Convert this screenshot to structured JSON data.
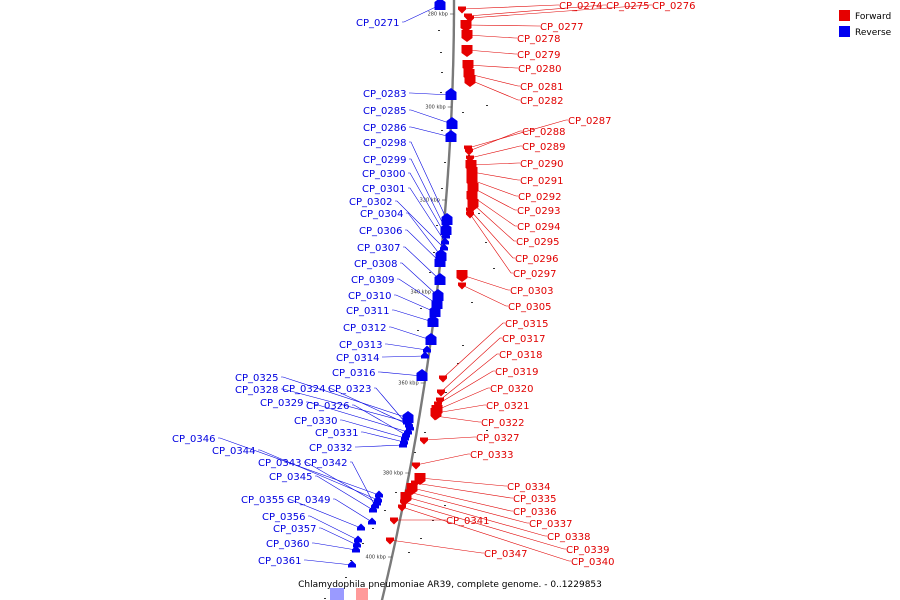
{
  "caption": "Chlamydophila pneumoniae AR39, complete genome. - 0..1229853",
  "legend": {
    "forward": {
      "label": "Forward",
      "color": "#e60000"
    },
    "reverse": {
      "label": "Reverse",
      "color": "#0000f0"
    }
  },
  "ticks": [
    {
      "label": "280 kbp"
    },
    {
      "label": "300 kbp"
    },
    {
      "label": "320 kbp"
    },
    {
      "label": "340 kbp"
    },
    {
      "label": "360 kbp"
    },
    {
      "label": "380 kbp"
    },
    {
      "label": "400 kbp"
    }
  ],
  "forward_genes": [
    "CP_0274",
    "CP_0275",
    "CP_0276",
    "CP_0277",
    "CP_0278",
    "CP_0279",
    "CP_0280",
    "CP_0281",
    "CP_0282",
    "CP_0287",
    "CP_0288",
    "CP_0289",
    "CP_0290",
    "CP_0291",
    "CP_0292",
    "CP_0293",
    "CP_0294",
    "CP_0295",
    "CP_0296",
    "CP_0297",
    "CP_0303",
    "CP_0305",
    "CP_0315",
    "CP_0317",
    "CP_0318",
    "CP_0319",
    "CP_0320",
    "CP_0321",
    "CP_0322",
    "CP_0327",
    "CP_0333",
    "CP_0334",
    "CP_0335",
    "CP_0336",
    "CP_0337",
    "CP_0338",
    "CP_0339",
    "CP_0340",
    "CP_0341",
    "CP_0347"
  ],
  "reverse_genes": [
    "CP_0271",
    "CP_0283",
    "CP_0285",
    "CP_0286",
    "CP_0298",
    "CP_0299",
    "CP_0300",
    "CP_0301",
    "CP_0302",
    "CP_0304",
    "CP_0306",
    "CP_0307",
    "CP_0308",
    "CP_0309",
    "CP_0310",
    "CP_0311",
    "CP_0312",
    "CP_0313",
    "CP_0314",
    "CP_0316",
    "CP_0325",
    "CP_0328",
    "CP_0324",
    "CP_0323",
    "CP_0329",
    "CP_0326",
    "CP_0330",
    "CP_0331",
    "CP_0332",
    "CP_0346",
    "CP_0344",
    "CP_0343",
    "CP_0342",
    "CP_0345",
    "CP_0355",
    "CP_0349",
    "CP_0356",
    "CP_0357",
    "CP_0360",
    "CP_0361"
  ]
}
